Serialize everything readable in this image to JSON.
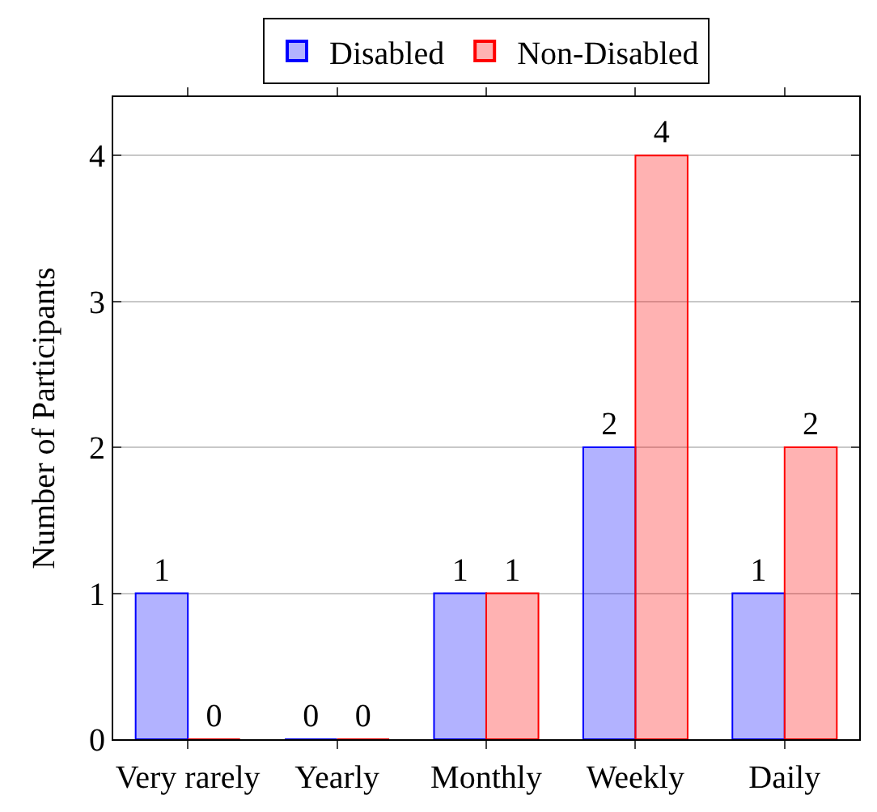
{
  "chart_data": {
    "type": "bar",
    "ylabel": "Number of Participants",
    "categories": [
      "Very rarely",
      "Yearly",
      "Monthly",
      "Weekly",
      "Daily"
    ],
    "series": [
      {
        "name": "Disabled",
        "color": "#0000ff",
        "values": [
          1,
          0,
          1,
          2,
          1
        ]
      },
      {
        "name": "Non-Disabled",
        "color": "#ff0000",
        "values": [
          0,
          0,
          1,
          4,
          2
        ]
      }
    ],
    "ylim": [
      0,
      4.4
    ],
    "yticks": [
      0,
      1,
      2,
      3,
      4
    ],
    "grid": "y",
    "legend": "top",
    "data_labels": true
  }
}
